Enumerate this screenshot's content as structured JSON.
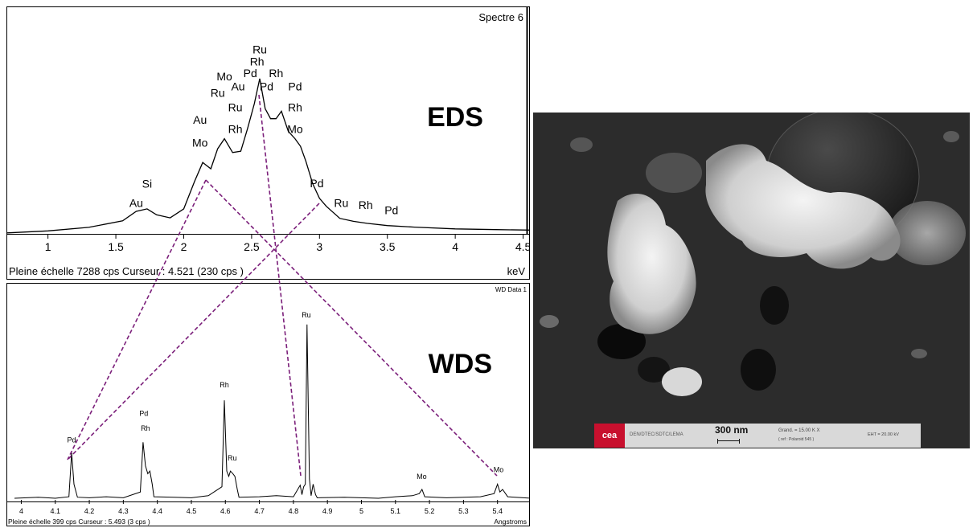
{
  "chart_data": [
    {
      "type": "line",
      "panel": "EDS",
      "title": "Spectre 6",
      "label": "EDS",
      "xlabel": "keV",
      "xlim": [
        0.7,
        4.55
      ],
      "ylim": [
        0,
        7288
      ],
      "xticks": [
        "1",
        "1.5",
        "2",
        "2.5",
        "3",
        "3.5",
        "4",
        "4.5"
      ],
      "status": "Pleine échelle 7288 cps  Curseur : 4.521  (230 cps )",
      "series": [
        {
          "x": [
            0.7,
            1.0,
            1.3,
            1.55,
            1.65,
            1.73,
            1.8,
            1.9,
            2.0,
            2.08,
            2.14,
            2.2,
            2.25,
            2.3,
            2.36,
            2.42,
            2.47,
            2.52,
            2.56,
            2.6,
            2.64,
            2.68,
            2.72,
            2.77,
            2.82,
            2.86,
            2.9,
            2.95,
            3.0,
            3.05,
            3.15,
            3.25,
            3.35,
            3.5,
            3.7,
            4.0,
            4.3,
            4.55
          ],
          "y": [
            40,
            120,
            260,
            520,
            900,
            1000,
            760,
            640,
            1000,
            2100,
            2850,
            2600,
            3400,
            3800,
            3250,
            3300,
            4200,
            5200,
            6200,
            5000,
            4600,
            4600,
            4900,
            4100,
            3800,
            3500,
            2900,
            2000,
            1420,
            1100,
            620,
            500,
            420,
            330,
            270,
            200,
            170,
            150
          ]
        }
      ],
      "annotations": [
        {
          "text": "Ru",
          "x": 2.56,
          "y": 7200
        },
        {
          "text": "Rh",
          "x": 2.54,
          "y": 6730
        },
        {
          "text": "Pd",
          "x": 2.49,
          "y": 6260
        },
        {
          "text": "Rh",
          "x": 2.68,
          "y": 6260
        },
        {
          "text": "Mo",
          "x": 2.3,
          "y": 6130
        },
        {
          "text": "Au",
          "x": 2.4,
          "y": 5730
        },
        {
          "text": "Pd",
          "x": 2.61,
          "y": 5730
        },
        {
          "text": "Pd",
          "x": 2.82,
          "y": 5730
        },
        {
          "text": "Ru",
          "x": 2.25,
          "y": 5480
        },
        {
          "text": "Ru",
          "x": 2.38,
          "y": 4890
        },
        {
          "text": "Rh",
          "x": 2.82,
          "y": 4890
        },
        {
          "text": "Au",
          "x": 2.12,
          "y": 4400
        },
        {
          "text": "Rh",
          "x": 2.38,
          "y": 4030
        },
        {
          "text": "Mo",
          "x": 2.82,
          "y": 4030
        },
        {
          "text": "Mo",
          "x": 2.12,
          "y": 3490
        },
        {
          "text": "Si",
          "x": 1.73,
          "y": 1850
        },
        {
          "text": "Pd",
          "x": 2.98,
          "y": 1860
        },
        {
          "text": "Au",
          "x": 1.65,
          "y": 1080
        },
        {
          "text": "Ru",
          "x": 3.16,
          "y": 1080
        },
        {
          "text": "Rh",
          "x": 3.34,
          "y": 990
        },
        {
          "text": "Pd",
          "x": 3.53,
          "y": 780
        }
      ]
    },
    {
      "type": "line",
      "panel": "WDS",
      "title": "WD Data 1",
      "label": "WDS",
      "xlabel": "Angstroms",
      "xlim": [
        3.98,
        5.5
      ],
      "ylim": [
        0,
        399
      ],
      "xticks": [
        "4",
        "4.1",
        "4.2",
        "4.3",
        "4.4",
        "4.5",
        "4.6",
        "4.7",
        "4.8",
        "4.9",
        "5",
        "5.1",
        "5.2",
        "5.3",
        "5.4"
      ],
      "status": "Pleine échelle 399 cps  Curseur : 5.493  (3 cps )",
      "series": [
        {
          "x": [
            3.98,
            4.05,
            4.1,
            4.14,
            4.148,
            4.155,
            4.165,
            4.2,
            4.25,
            4.3,
            4.35,
            4.358,
            4.365,
            4.372,
            4.378,
            4.385,
            4.39,
            4.45,
            4.5,
            4.55,
            4.59,
            4.597,
            4.604,
            4.61,
            4.615,
            4.622,
            4.628,
            4.635,
            4.64,
            4.7,
            4.75,
            4.8,
            4.82,
            4.825,
            4.83,
            4.835,
            4.84,
            4.847,
            4.852,
            4.858,
            4.865,
            4.87,
            4.95,
            5.05,
            5.1,
            5.15,
            5.17,
            5.178,
            5.186,
            5.25,
            5.3,
            5.35,
            5.39,
            5.4,
            5.407,
            5.415,
            5.43,
            5.5
          ],
          "y": [
            3,
            5,
            3,
            6,
            90,
            30,
            5,
            4,
            6,
            4,
            15,
            110,
            65,
            50,
            55,
            30,
            6,
            5,
            4,
            8,
            25,
            190,
            55,
            45,
            55,
            50,
            45,
            20,
            5,
            6,
            8,
            6,
            28,
            10,
            25,
            30,
            335,
            40,
            8,
            30,
            10,
            4,
            5,
            3,
            6,
            8,
            12,
            20,
            6,
            4,
            5,
            6,
            12,
            30,
            15,
            20,
            6,
            3
          ]
        }
      ],
      "annotations": [
        {
          "text": "Pd",
          "x": 4.148,
          "y": 110
        },
        {
          "text": "Pd",
          "x": 4.36,
          "y": 160
        },
        {
          "text": "Rh",
          "x": 4.365,
          "y": 132
        },
        {
          "text": "Rh",
          "x": 4.597,
          "y": 215
        },
        {
          "text": "Ru",
          "x": 4.62,
          "y": 75
        },
        {
          "text": "Ru",
          "x": 4.838,
          "y": 348
        },
        {
          "text": "Mo",
          "x": 5.177,
          "y": 40
        },
        {
          "text": "Mo",
          "x": 5.403,
          "y": 53
        }
      ]
    }
  ],
  "sem": {
    "logo": "cea",
    "lab": "DEN/DTEC/SDTC/LEMA",
    "scale": "300 nm",
    "magnification": "Grand. = 15.00 K X",
    "ref": "( ref : Polaroid 545 )",
    "eht": "EHT = 20.00 kV"
  }
}
